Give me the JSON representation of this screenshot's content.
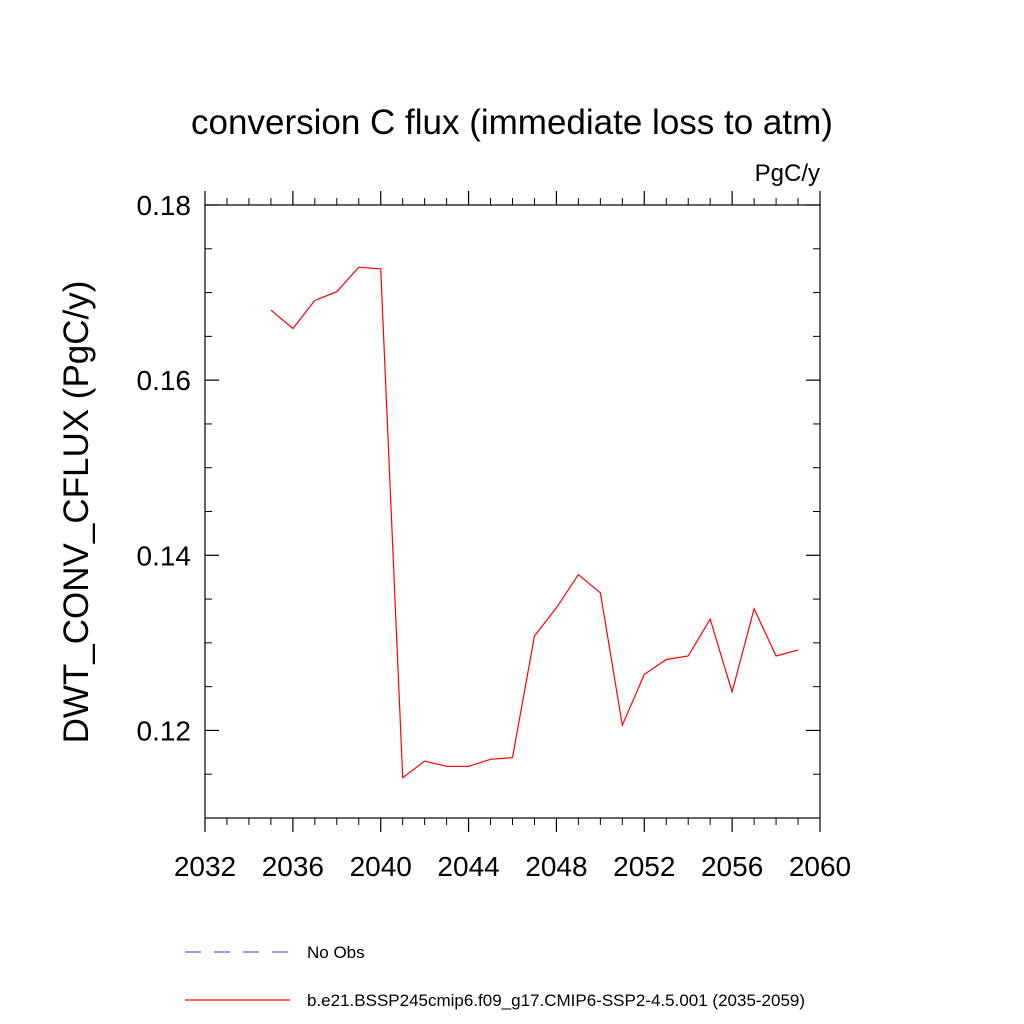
{
  "chart_data": {
    "type": "line",
    "title": "conversion C flux (immediate loss to atm)",
    "units": "PgC/y",
    "ylabel": "DWT_CONV_CFLUX  (PgC/y)",
    "xlabel": "",
    "xlim": [
      2032,
      2060
    ],
    "ylim": [
      0.11,
      0.18
    ],
    "x_ticks": [
      2032,
      2036,
      2040,
      2044,
      2048,
      2052,
      2056,
      2060
    ],
    "x_tick_labels": [
      "2032",
      "2036",
      "2040",
      "2044",
      "2048",
      "2052",
      "2056",
      "2060"
    ],
    "y_ticks": [
      0.12,
      0.14,
      0.16,
      0.18
    ],
    "y_tick_labels": [
      "0.12",
      "0.14",
      "0.16",
      "0.18"
    ],
    "grid": false,
    "legend_position": "bottom",
    "series": [
      {
        "name": "b.e21.BSSP245cmip6.f09_g17.CMIP6-SSP2-4.5.001 (2035-2059)",
        "color": "#ff0000",
        "dash": "solid",
        "x": [
          2035,
          2036,
          2037,
          2038,
          2039,
          2040,
          2041,
          2042,
          2043,
          2044,
          2045,
          2046,
          2047,
          2048,
          2049,
          2050,
          2051,
          2052,
          2053,
          2054,
          2055,
          2056,
          2057,
          2058,
          2059
        ],
        "values": [
          0.168,
          0.1659,
          0.1691,
          0.1701,
          0.1729,
          0.1727,
          0.1146,
          0.1165,
          0.1159,
          0.1159,
          0.1167,
          0.1169,
          0.1308,
          0.134,
          0.1378,
          0.1357,
          0.1206,
          0.1264,
          0.1281,
          0.1285,
          0.1327,
          0.1244,
          0.1339,
          0.1285,
          0.1292
        ]
      }
    ],
    "legend": [
      {
        "label": "No Obs",
        "color": "#6a5acd",
        "dash": "dashed"
      },
      {
        "label": "b.e21.BSSP245cmip6.f09_g17.CMIP6-SSP2-4.5.001 (2035-2059)",
        "color": "#ff0000",
        "dash": "solid"
      }
    ]
  }
}
